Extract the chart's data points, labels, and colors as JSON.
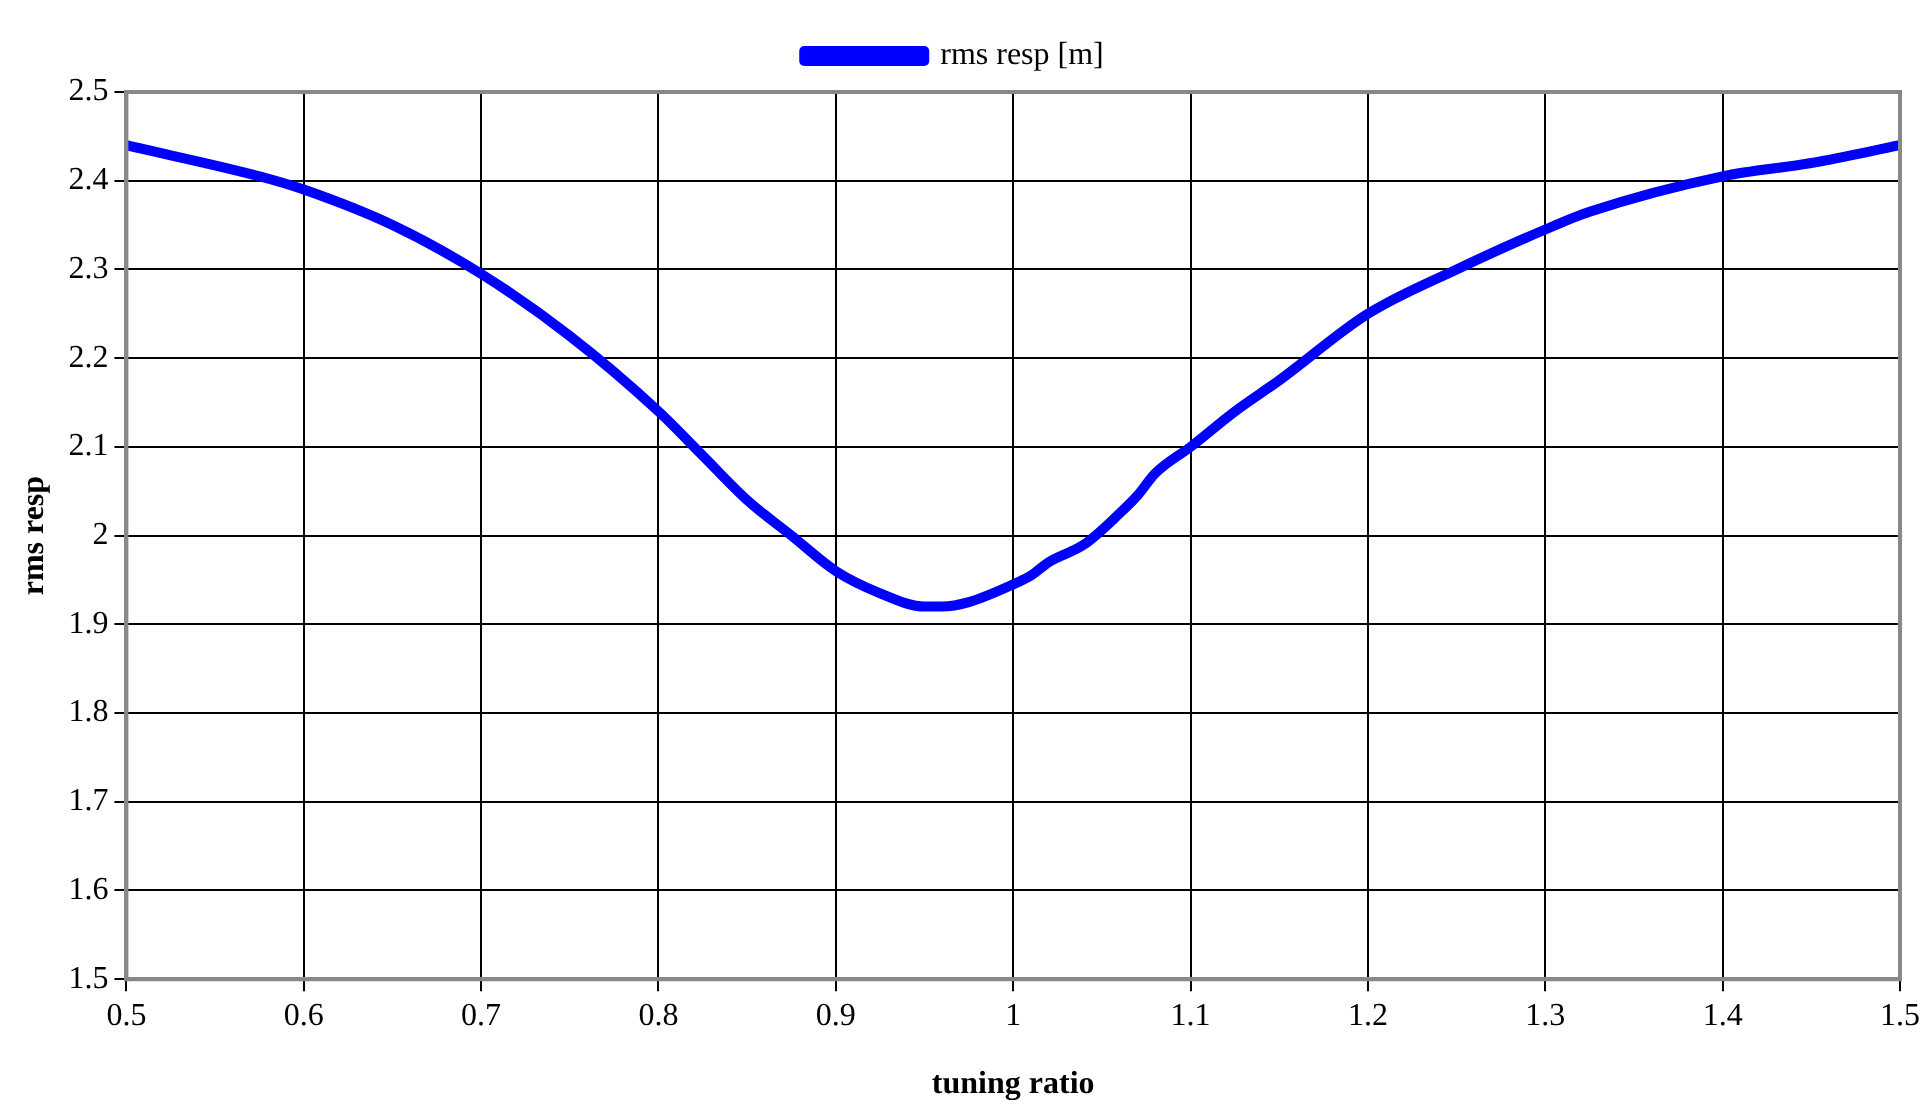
{
  "chart_data": {
    "type": "line",
    "xlabel": "tuning ratio",
    "ylabel": "rms resp",
    "x": [
      0.5,
      0.575,
      0.6,
      0.65,
      0.7,
      0.75,
      0.8,
      0.825,
      0.85,
      0.875,
      0.9,
      0.925,
      0.95,
      0.96,
      0.975,
      1.0,
      1.01,
      1.02,
      1.04,
      1.06,
      1.07,
      1.08,
      1.1,
      1.125,
      1.15,
      1.2,
      1.25,
      1.3,
      1.325,
      1.4,
      1.45,
      1.5
    ],
    "series": [
      {
        "name": "rms resp [m]",
        "color": "#0000ff",
        "values": [
          2.44,
          2.405,
          2.39,
          2.35,
          2.295,
          2.225,
          2.14,
          2.09,
          2.04,
          2.0,
          1.96,
          1.935,
          1.92,
          1.92,
          1.925,
          1.945,
          1.955,
          1.97,
          1.99,
          2.025,
          2.045,
          2.07,
          2.1,
          2.14,
          2.175,
          2.25,
          2.3,
          2.345,
          2.365,
          2.405,
          2.42,
          2.44
        ]
      }
    ],
    "xlim": [
      0.5,
      1.5
    ],
    "xticks": [
      0.5,
      0.6,
      0.7,
      0.8,
      0.9,
      1,
      1.1,
      1.2,
      1.3,
      1.4,
      1.5
    ],
    "ylim": [
      1.5,
      2.5
    ],
    "yticks": [
      1.5,
      1.6,
      1.7,
      1.8,
      1.9,
      2,
      2.1,
      2.2,
      2.3,
      2.4,
      2.5
    ],
    "grid": true,
    "legend": "top",
    "marker": "none",
    "line_style": "solid"
  }
}
